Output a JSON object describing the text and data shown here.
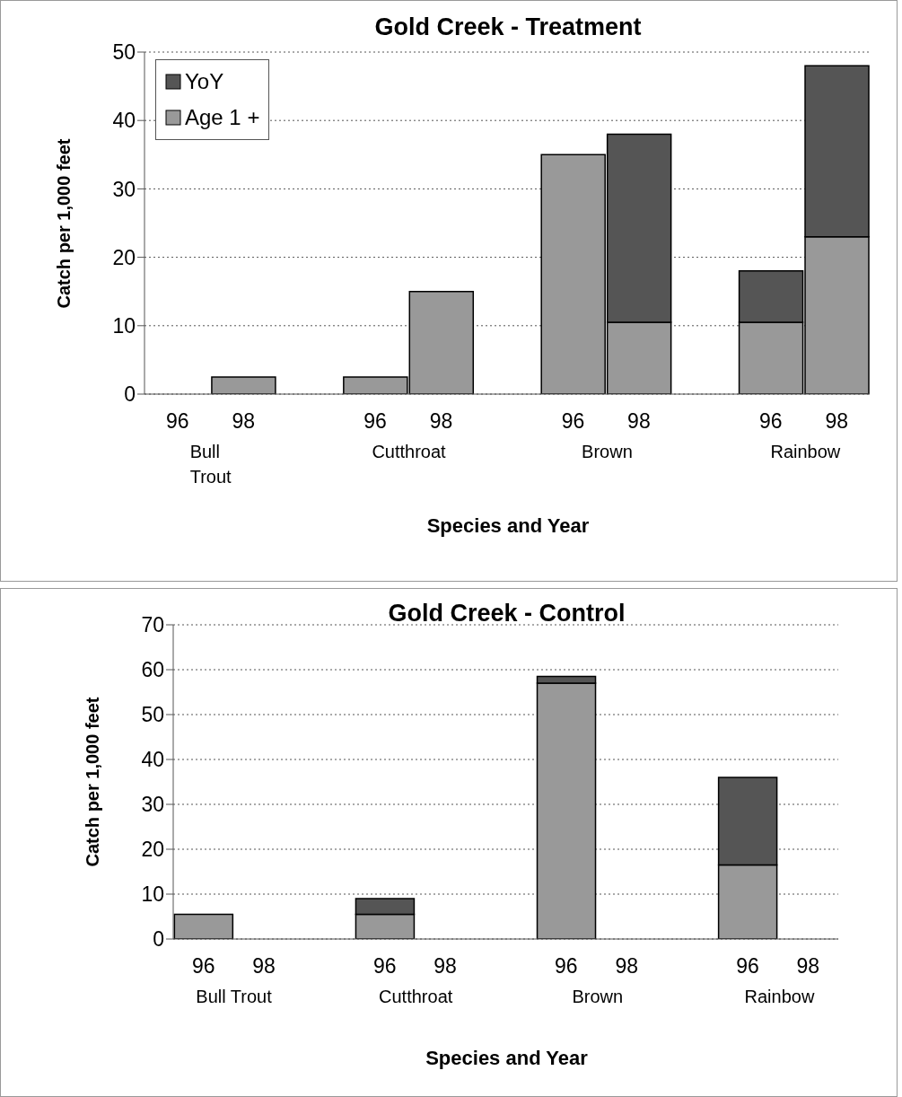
{
  "chart_data": [
    {
      "type": "bar",
      "title": "Gold Creek - Treatment",
      "xlabel": "Species and Year",
      "ylabel": "Catch per 1,000 feet",
      "categories": [
        "96",
        "98",
        null,
        "96",
        "98",
        null,
        "96",
        "98",
        null,
        "96",
        "98"
      ],
      "stacked": true,
      "series": [
        {
          "name": "Age 1 +",
          "color": "#999999",
          "values": [
            0,
            2.5,
            null,
            2.5,
            15,
            null,
            35,
            10.5,
            null,
            10.5,
            23
          ]
        },
        {
          "name": "YoY",
          "color": "#555555",
          "values": [
            0,
            0,
            null,
            0,
            0,
            null,
            0,
            27.5,
            null,
            7.5,
            25
          ]
        }
      ],
      "ylim": [
        0,
        50
      ],
      "yticks": [
        0,
        10,
        20,
        30,
        40,
        50
      ],
      "grid": "y",
      "legend": "top left",
      "annotations": [
        "Bull Trout",
        "Cutthroat",
        "Brown",
        "Rainbow"
      ]
    },
    {
      "type": "bar",
      "title": "Gold Creek - Control",
      "xlabel": "Species and Year",
      "ylabel": "Catch per 1,000 feet",
      "categories": [
        "96",
        "98",
        null,
        "96",
        "98",
        null,
        "96",
        "98",
        null,
        "96",
        "98"
      ],
      "stacked": true,
      "series": [
        {
          "color": "#999999",
          "values": [
            5.5,
            null,
            null,
            5.5,
            null,
            null,
            57,
            null,
            null,
            16.5,
            null
          ]
        },
        {
          "color": "#555555",
          "values": [
            0,
            null,
            null,
            3.5,
            null,
            null,
            1.5,
            null,
            null,
            19.5,
            null
          ]
        }
      ],
      "ylim": [
        0,
        70
      ],
      "yticks": [
        0,
        10,
        20,
        30,
        40,
        50,
        60,
        70
      ],
      "grid": "y",
      "legend": false,
      "annotations": [
        "Bull Trout",
        "Cutthroat",
        "Brown",
        "Rainbow"
      ]
    }
  ]
}
